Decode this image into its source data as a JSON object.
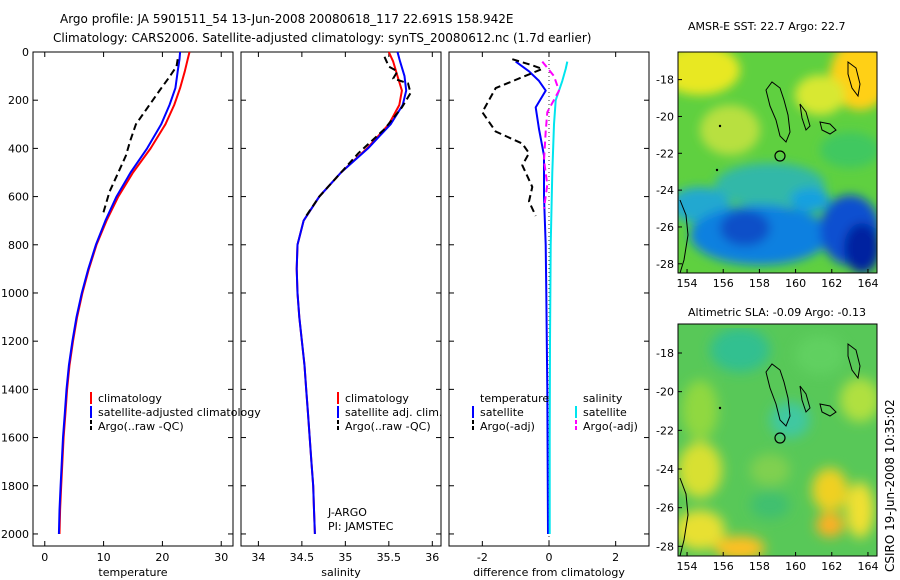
{
  "header": {
    "line1": "Argo profile: JA 5901511_54 13-Jun-2008 20080618_117 22.691S 158.942E",
    "line2": "Climatology: CARS2006. Satellite-adjusted climatology: synTS_20080612.nc (1.7d earlier)"
  },
  "side_text": "CSIRO 19-Jun-2008 10:35:02",
  "chart_data": [
    {
      "type": "line",
      "name": "temperature-profile",
      "xlabel": "temperature",
      "ylabel": "",
      "xlim": [
        -2,
        32
      ],
      "ylim": [
        2050,
        0
      ],
      "xticks": [
        0,
        10,
        20,
        30
      ],
      "yticks": [
        0,
        200,
        400,
        600,
        800,
        1000,
        1200,
        1400,
        1600,
        1800,
        2000
      ],
      "legend": [
        "climatology",
        "satellite-adjusted climatology",
        "Argo(..raw -QC)"
      ],
      "series": [
        {
          "name": "climatology",
          "color": "#ff0000",
          "dash": "",
          "points": [
            [
              24.6,
              0
            ],
            [
              24.3,
              30
            ],
            [
              23.8,
              80
            ],
            [
              23.0,
              150
            ],
            [
              22.0,
              220
            ],
            [
              20.5,
              300
            ],
            [
              18.0,
              400
            ],
            [
              15.0,
              500
            ],
            [
              12.5,
              600
            ],
            [
              10.5,
              700
            ],
            [
              8.8,
              800
            ],
            [
              7.5,
              900
            ],
            [
              6.4,
              1000
            ],
            [
              5.5,
              1100
            ],
            [
              4.8,
              1200
            ],
            [
              4.2,
              1300
            ],
            [
              3.8,
              1400
            ],
            [
              3.5,
              1500
            ],
            [
              3.2,
              1600
            ],
            [
              3.0,
              1700
            ],
            [
              2.8,
              1800
            ],
            [
              2.6,
              1900
            ],
            [
              2.5,
              2000
            ]
          ]
        },
        {
          "name": "satellite-adjusted climatology",
          "color": "#0000ff",
          "dash": "",
          "points": [
            [
              23.0,
              0
            ],
            [
              22.9,
              30
            ],
            [
              22.6,
              80
            ],
            [
              22.2,
              150
            ],
            [
              21.2,
              220
            ],
            [
              19.8,
              300
            ],
            [
              17.4,
              400
            ],
            [
              14.6,
              500
            ],
            [
              12.2,
              600
            ],
            [
              10.3,
              700
            ],
            [
              8.7,
              800
            ],
            [
              7.4,
              900
            ],
            [
              6.3,
              1000
            ],
            [
              5.4,
              1100
            ],
            [
              4.7,
              1200
            ],
            [
              4.1,
              1300
            ],
            [
              3.7,
              1400
            ],
            [
              3.4,
              1500
            ],
            [
              3.1,
              1600
            ],
            [
              2.9,
              1700
            ],
            [
              2.7,
              1800
            ],
            [
              2.5,
              1900
            ],
            [
              2.4,
              2000
            ]
          ]
        },
        {
          "name": "Argo(..raw -QC)",
          "color": "#000000",
          "dash": "7,4",
          "points": [
            [
              22.6,
              30
            ],
            [
              22.4,
              60
            ],
            [
              21.0,
              110
            ],
            [
              19.5,
              160
            ],
            [
              17.5,
              230
            ],
            [
              15.5,
              300
            ],
            [
              14.5,
              370
            ],
            [
              13.8,
              430
            ],
            [
              12.5,
              500
            ],
            [
              11.0,
              580
            ],
            [
              9.8,
              680
            ]
          ]
        }
      ]
    },
    {
      "type": "line",
      "name": "salinity-profile",
      "xlabel": "salinity",
      "ylabel": "",
      "xlim": [
        33.8,
        36.1
      ],
      "ylim": [
        2050,
        0
      ],
      "xticks": [
        34,
        34.5,
        35,
        35.5,
        36
      ],
      "legend": [
        "climatology",
        "satellite adj. clim.",
        "Argo(..raw -QC)"
      ],
      "annotation": [
        "J-ARGO",
        "PI: JAMSTEC"
      ],
      "series": [
        {
          "name": "climatology",
          "color": "#ff0000",
          "dash": "",
          "points": [
            [
              35.5,
              0
            ],
            [
              35.55,
              40
            ],
            [
              35.6,
              100
            ],
            [
              35.65,
              160
            ],
            [
              35.62,
              220
            ],
            [
              35.5,
              300
            ],
            [
              35.25,
              400
            ],
            [
              34.95,
              500
            ],
            [
              34.7,
              600
            ],
            [
              34.52,
              700
            ],
            [
              34.45,
              800
            ],
            [
              34.44,
              900
            ],
            [
              34.45,
              1000
            ],
            [
              34.47,
              1100
            ],
            [
              34.5,
              1200
            ],
            [
              34.53,
              1300
            ],
            [
              34.55,
              1400
            ],
            [
              34.57,
              1500
            ],
            [
              34.59,
              1600
            ],
            [
              34.61,
              1700
            ],
            [
              34.63,
              1800
            ],
            [
              34.64,
              1900
            ],
            [
              34.65,
              2000
            ]
          ]
        },
        {
          "name": "satellite adj. clim.",
          "color": "#0000ff",
          "dash": "",
          "points": [
            [
              35.6,
              0
            ],
            [
              35.63,
              40
            ],
            [
              35.68,
              100
            ],
            [
              35.7,
              160
            ],
            [
              35.66,
              220
            ],
            [
              35.52,
              300
            ],
            [
              35.26,
              400
            ],
            [
              34.95,
              500
            ],
            [
              34.7,
              600
            ],
            [
              34.52,
              700
            ],
            [
              34.45,
              800
            ],
            [
              34.44,
              900
            ],
            [
              34.45,
              1000
            ],
            [
              34.47,
              1100
            ],
            [
              34.5,
              1200
            ],
            [
              34.53,
              1300
            ],
            [
              34.55,
              1400
            ],
            [
              34.57,
              1500
            ],
            [
              34.59,
              1600
            ],
            [
              34.61,
              1700
            ],
            [
              34.63,
              1800
            ],
            [
              34.64,
              1900
            ],
            [
              34.65,
              2000
            ]
          ]
        },
        {
          "name": "Argo(..raw -QC)",
          "color": "#000000",
          "dash": "7,4",
          "points": [
            [
              35.45,
              20
            ],
            [
              35.5,
              60
            ],
            [
              35.6,
              80
            ],
            [
              35.55,
              110
            ],
            [
              35.72,
              130
            ],
            [
              35.75,
              170
            ],
            [
              35.65,
              230
            ],
            [
              35.45,
              320
            ],
            [
              35.15,
              420
            ],
            [
              34.9,
              520
            ],
            [
              34.7,
              600
            ],
            [
              34.55,
              680
            ]
          ]
        }
      ]
    },
    {
      "type": "line",
      "name": "difference-profile",
      "xlabel": "difference from climatology",
      "ylabel": "",
      "xlim": [
        -3.0,
        3.0
      ],
      "ylim": [
        2050,
        0
      ],
      "xticks": [
        -2,
        0,
        2
      ],
      "legend_headers": [
        "temperature",
        "salinity"
      ],
      "legend": [
        "satellite",
        "Argo(-adj)",
        "satellite",
        "Argo(-adj)"
      ],
      "series": [
        {
          "name": "temperature satellite",
          "color": "#0000ff",
          "dash": "",
          "points": [
            [
              -1.0,
              40
            ],
            [
              -0.6,
              80
            ],
            [
              -0.3,
              120
            ],
            [
              -0.1,
              160
            ],
            [
              -0.4,
              230
            ],
            [
              -0.3,
              320
            ],
            [
              -0.15,
              430
            ],
            [
              -0.15,
              600
            ],
            [
              -0.1,
              800
            ],
            [
              -0.08,
              1000
            ],
            [
              -0.05,
              1400
            ],
            [
              -0.03,
              2000
            ]
          ]
        },
        {
          "name": "temperature Argo(-adj)",
          "color": "#000000",
          "dash": "7,4",
          "points": [
            [
              -1.1,
              30
            ],
            [
              -0.5,
              55
            ],
            [
              -0.2,
              70
            ],
            [
              -1.6,
              150
            ],
            [
              -2.0,
              250
            ],
            [
              -1.6,
              330
            ],
            [
              -0.8,
              380
            ],
            [
              -0.6,
              420
            ],
            [
              -0.8,
              470
            ],
            [
              -0.5,
              560
            ],
            [
              -0.6,
              620
            ],
            [
              -0.4,
              680
            ]
          ]
        },
        {
          "name": "salinity satellite",
          "color": "#00e5ee",
          "dash": "",
          "points": [
            [
              0.55,
              40
            ],
            [
              0.5,
              70
            ],
            [
              0.4,
              120
            ],
            [
              0.2,
              200
            ],
            [
              0.15,
              300
            ],
            [
              0.1,
              500
            ],
            [
              0.05,
              800
            ],
            [
              0.03,
              1200
            ],
            [
              0.02,
              1600
            ],
            [
              0.02,
              2000
            ]
          ]
        },
        {
          "name": "salinity Argo(-adj)",
          "color": "#ff00ff",
          "dash": "7,4",
          "points": [
            [
              -0.2,
              40
            ],
            [
              0.15,
              100
            ],
            [
              0.3,
              160
            ],
            [
              -0.05,
              250
            ],
            [
              -0.1,
              330
            ],
            [
              -0.15,
              450
            ],
            [
              -0.05,
              550
            ],
            [
              -0.15,
              650
            ]
          ]
        }
      ]
    },
    {
      "type": "heatmap",
      "name": "sst-map",
      "title": "AMSR-E SST: 22.7  Argo: 22.7",
      "xlim": [
        153.5,
        164.5
      ],
      "ylim": [
        -28.5,
        -16.5
      ],
      "xticks": [
        154,
        156,
        158,
        160,
        162,
        164
      ],
      "yticks": [
        -18,
        -20,
        -22,
        -24,
        -26,
        -28
      ],
      "argo_position": [
        158.94,
        -22.69
      ]
    },
    {
      "type": "heatmap",
      "name": "sla-map",
      "title": "Altimetric SLA: -0.09  Argo: -0.13",
      "xlim": [
        153.5,
        164.5
      ],
      "ylim": [
        -28.5,
        -16.5
      ],
      "xticks": [
        154,
        156,
        158,
        160,
        162,
        164
      ],
      "yticks": [
        -18,
        -20,
        -22,
        -24,
        -26,
        -28
      ],
      "argo_position": [
        158.94,
        -22.69
      ]
    }
  ]
}
